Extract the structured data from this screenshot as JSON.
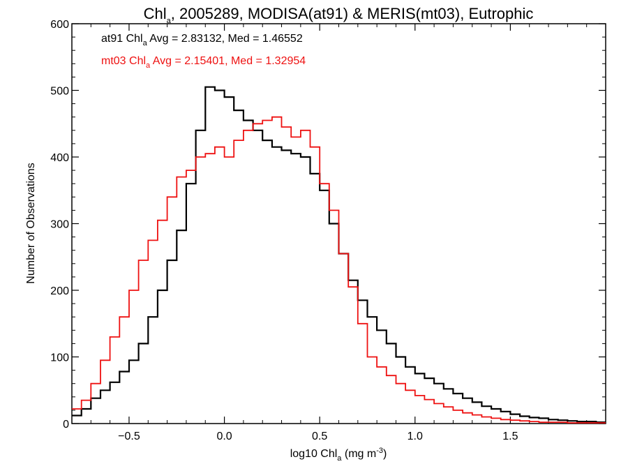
{
  "chart_data": {
    "type": "line",
    "title": {
      "prefix": "Chl",
      "sub": "a",
      "rest": ", 2005289, MODISA(at91) & MERIS(mt03), Eutrophic"
    },
    "xlabel": {
      "prefix": "log10 Chl",
      "sub": "a",
      "rest": " (mg m",
      "sup": "-3",
      "end": ")"
    },
    "ylabel": "Number of Observations",
    "xlim": [
      -0.8,
      2.0
    ],
    "ylim": [
      0,
      600
    ],
    "xticks": [
      -0.5,
      0.0,
      0.5,
      1.0,
      1.5
    ],
    "xtick_labels": [
      "−0.5",
      "0.0",
      "0.5",
      "1.0",
      "1.5"
    ],
    "yticks": [
      0,
      100,
      200,
      300,
      400,
      500,
      600
    ],
    "ytick_labels": [
      "0",
      "100",
      "200",
      "300",
      "400",
      "500",
      "600"
    ],
    "annotations": [
      {
        "prefix": "at91 Chl",
        "sub": "a",
        "rest": " Avg = 2.83132, Med = 1.46552",
        "color": "#000000"
      },
      {
        "prefix": "mt03 Chl",
        "sub": "a",
        "rest": " Avg = 2.15401, Med = 1.32954",
        "color": "#ee1111"
      }
    ],
    "series": [
      {
        "color": "#000000",
        "x": [
          -0.8,
          -0.75,
          -0.7,
          -0.65,
          -0.6,
          -0.55,
          -0.5,
          -0.45,
          -0.4,
          -0.35,
          -0.3,
          -0.25,
          -0.2,
          -0.15,
          -0.1,
          -0.05,
          0.0,
          0.05,
          0.1,
          0.15,
          0.2,
          0.25,
          0.3,
          0.35,
          0.4,
          0.45,
          0.5,
          0.55,
          0.6,
          0.65,
          0.7,
          0.75,
          0.8,
          0.85,
          0.9,
          0.95,
          1.0,
          1.05,
          1.1,
          1.15,
          1.2,
          1.25,
          1.3,
          1.35,
          1.4,
          1.45,
          1.5,
          1.55,
          1.6,
          1.65,
          1.7,
          1.75,
          1.8,
          1.85,
          1.9,
          1.95
        ],
        "values": [
          12,
          22,
          38,
          50,
          62,
          78,
          95,
          120,
          160,
          200,
          245,
          290,
          360,
          440,
          505,
          500,
          490,
          470,
          455,
          440,
          425,
          415,
          410,
          405,
          400,
          375,
          350,
          300,
          255,
          215,
          185,
          160,
          140,
          120,
          100,
          85,
          75,
          68,
          60,
          52,
          45,
          38,
          32,
          26,
          22,
          18,
          14,
          11,
          9,
          8,
          6,
          5,
          4,
          3,
          3,
          2
        ]
      },
      {
        "color": "#ee1111",
        "x": [
          -0.8,
          -0.75,
          -0.7,
          -0.65,
          -0.6,
          -0.55,
          -0.5,
          -0.45,
          -0.4,
          -0.35,
          -0.3,
          -0.25,
          -0.2,
          -0.15,
          -0.1,
          -0.05,
          0.0,
          0.05,
          0.1,
          0.15,
          0.2,
          0.25,
          0.3,
          0.35,
          0.4,
          0.45,
          0.5,
          0.55,
          0.6,
          0.65,
          0.7,
          0.75,
          0.8,
          0.85,
          0.9,
          0.95,
          1.0,
          1.05,
          1.1,
          1.15,
          1.2,
          1.25,
          1.3,
          1.35,
          1.4,
          1.45,
          1.5,
          1.55,
          1.6,
          1.65,
          1.7,
          1.75,
          1.8,
          1.85,
          1.9,
          1.95
        ],
        "values": [
          22,
          35,
          60,
          95,
          130,
          160,
          200,
          245,
          275,
          305,
          340,
          370,
          380,
          400,
          405,
          415,
          400,
          425,
          440,
          450,
          455,
          460,
          445,
          430,
          440,
          415,
          360,
          320,
          255,
          205,
          150,
          100,
          85,
          72,
          60,
          50,
          42,
          36,
          30,
          25,
          20,
          16,
          13,
          10,
          8,
          6,
          5,
          4,
          3,
          2,
          2,
          2,
          1,
          1,
          1,
          1
        ]
      }
    ],
    "legend": "top-left (text annotations)",
    "grid": false
  }
}
